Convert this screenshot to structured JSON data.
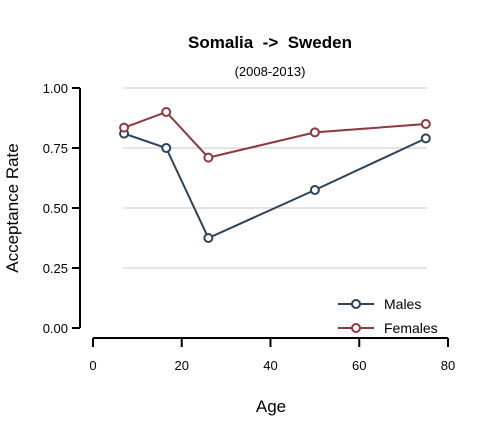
{
  "chart_data": {
    "type": "line",
    "title": "Somalia  ->  Sweden",
    "subtitle": "(2008-2013)",
    "xlabel": "Age",
    "ylabel": "Acceptance Rate",
    "xlim": [
      0,
      80
    ],
    "ylim": [
      0,
      1
    ],
    "xticks": [
      0,
      20,
      40,
      60,
      80
    ],
    "yticks": [
      0,
      0.25,
      0.5,
      0.75,
      1.0
    ],
    "xtick_labels": [
      "0",
      "20",
      "40",
      "60",
      "80"
    ],
    "ytick_labels": [
      "0.00",
      "0.25",
      "0.50",
      "0.75",
      "1.00"
    ],
    "grid": "horizontal",
    "legend_position": "bottom-right",
    "series": [
      {
        "name": "Males",
        "color": "#2b4257",
        "points": [
          {
            "x": 7,
            "y": 0.81
          },
          {
            "x": 16.5,
            "y": 0.75
          },
          {
            "x": 26,
            "y": 0.375
          },
          {
            "x": 50,
            "y": 0.575
          },
          {
            "x": 75,
            "y": 0.79
          }
        ]
      },
      {
        "name": "Females",
        "color": "#8b3a3f",
        "points": [
          {
            "x": 7,
            "y": 0.835
          },
          {
            "x": 16.5,
            "y": 0.9
          },
          {
            "x": 26,
            "y": 0.71
          },
          {
            "x": 50,
            "y": 0.815
          },
          {
            "x": 75,
            "y": 0.85
          }
        ]
      }
    ]
  }
}
